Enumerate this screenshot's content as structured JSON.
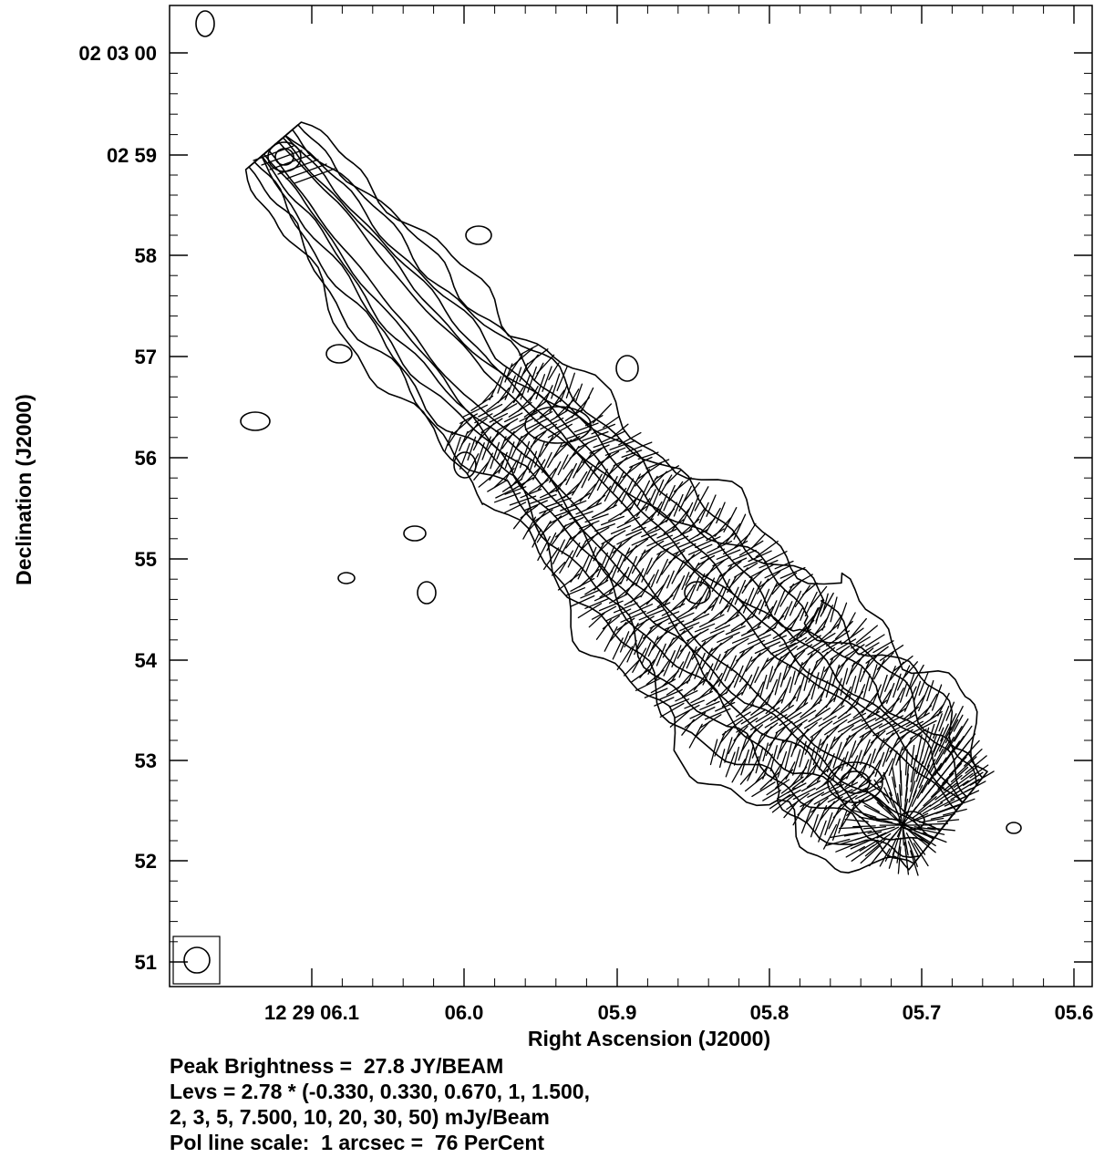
{
  "chart_data": {
    "type": "contour",
    "xlabel": "Right Ascension (J2000)",
    "ylabel": "Declination (J2000)",
    "x_ticks": [
      "12 29 06.1",
      "06.0",
      "05.9",
      "05.8",
      "05.7",
      "05.6"
    ],
    "y_ticks": [
      "02 03 00",
      "02 59",
      "58",
      "57",
      "56",
      "55",
      "54",
      "53",
      "52",
      "51"
    ],
    "peak_brightness": "Peak Brightness =  27.8 JY/BEAM",
    "levels_line1": "Levs = 2.78 * (-0.330, 0.330, 0.670, 1, 1.500,",
    "levels_line2": "2, 3, 5, 7.500, 10, 20, 30, 50) mJy/Beam",
    "pol_scale": "Pol line scale:  1 arcsec =  76 PerCent",
    "contour_multiplier": 2.78,
    "contour_levels": [
      -0.33,
      0.33,
      0.67,
      1,
      1.5,
      2,
      3,
      5,
      7.5,
      10,
      20,
      30,
      50
    ],
    "contour_units": "mJy/Beam",
    "peak_value_jy_per_beam": 27.8,
    "pol_scale_percent_per_arcsec": 76
  }
}
